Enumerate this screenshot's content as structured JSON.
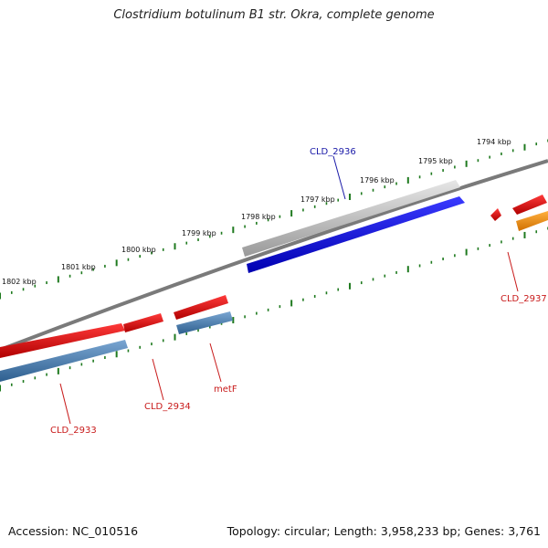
{
  "title": "Clostridium botulinum B1 str. Okra, complete genome",
  "footer": {
    "accession": "Accession: NC_010516",
    "summary": "Topology: circular; Length: 3,958,233 bp; Genes: 3,761"
  },
  "ticks": [
    {
      "label": "1794 kbp",
      "kbp": 1794
    },
    {
      "label": "1795 kbp",
      "kbp": 1795
    },
    {
      "label": "1796 kbp",
      "kbp": 1796
    },
    {
      "label": "1797 kbp",
      "kbp": 1797
    },
    {
      "label": "1798 kbp",
      "kbp": 1798
    },
    {
      "label": "1799 kbp",
      "kbp": 1799
    },
    {
      "label": "1800 kbp",
      "kbp": 1800
    },
    {
      "label": "1801 kbp",
      "kbp": 1801
    },
    {
      "label": "1802 kbp",
      "kbp": 1802
    }
  ],
  "genes": [
    {
      "label": "CLD_2936",
      "strand": "forward",
      "color": "#1a1ae6"
    },
    {
      "label": "CLD_2937",
      "strand": "reverse",
      "color": "#e61a1a"
    },
    {
      "label": "metF",
      "strand": "reverse",
      "color": "#e61a1a"
    },
    {
      "label": "CLD_2934",
      "strand": "reverse",
      "color": "#e61a1a"
    },
    {
      "label": "CLD_2933",
      "strand": "reverse",
      "color": "#e61a1a"
    }
  ],
  "colors": {
    "backbone": "#7a7a7a",
    "tick": "#1f7a1f",
    "cds_forward": "#c8c8c8",
    "cds_reverse": "#4a7aa8",
    "gene_forward": "#1a1ae6",
    "gene_reverse": "#e61a1a",
    "orange": "#f08a00",
    "label_forward": "#1a1aa8",
    "label_reverse": "#c81a1a"
  }
}
